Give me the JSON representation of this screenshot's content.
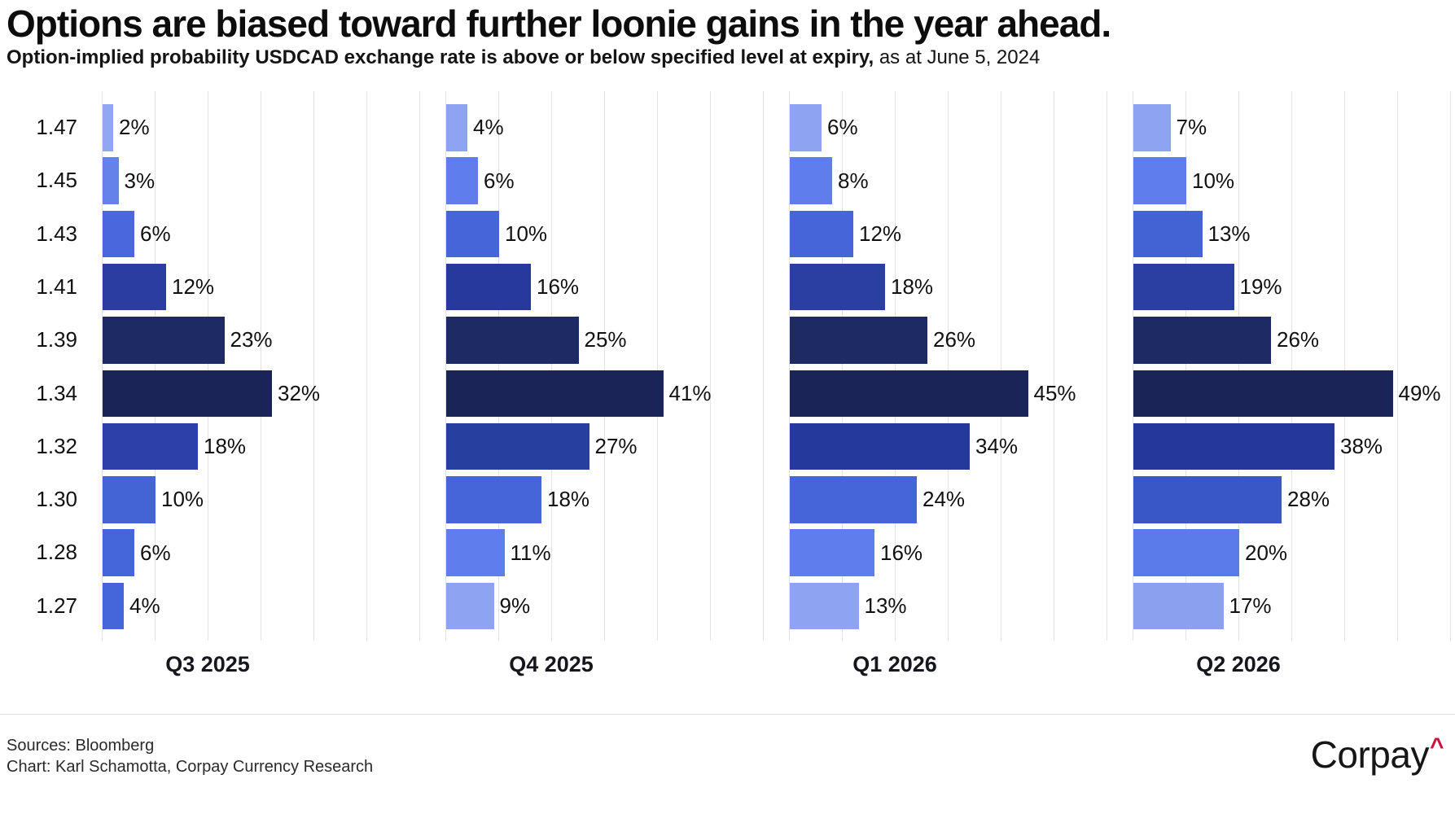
{
  "header": {
    "title": "Options are biased toward further loonie gains in the year ahead.",
    "subtitle_main": "Option-implied probability USDCAD exchange rate is above or below specified level at expiry,",
    "subtitle_suffix": " as at June 5, 2024"
  },
  "chart_data": {
    "type": "bar",
    "orientation": "horizontal",
    "grid": true,
    "gridline_interval_pct": 10,
    "xlim": [
      0,
      60
    ],
    "value_suffix": "%",
    "categories": [
      "1.47",
      "1.45",
      "1.43",
      "1.41",
      "1.39",
      "1.34",
      "1.32",
      "1.30",
      "1.28",
      "1.27"
    ],
    "panels": [
      {
        "label": "Q3 2025",
        "values": [
          2,
          3,
          6,
          12,
          23,
          32,
          18,
          10,
          6,
          4
        ],
        "colors": [
          "#93A6F1",
          "#6581EA",
          "#4A67DD",
          "#2B3DA0",
          "#1D2A63",
          "#1A2457",
          "#2D40AA",
          "#4464D6",
          "#4566DB",
          "#4566DB"
        ]
      },
      {
        "label": "Q4 2025",
        "values": [
          4,
          6,
          10,
          16,
          25,
          41,
          27,
          18,
          11,
          9
        ],
        "colors": [
          "#8EA3F1",
          "#5F7DEC",
          "#4565D8",
          "#28399D",
          "#1D2A63",
          "#1A2457",
          "#27409F",
          "#4565D8",
          "#5F7DEC",
          "#8EA3F1"
        ]
      },
      {
        "label": "Q1 2026",
        "values": [
          6,
          8,
          12,
          18,
          26,
          45,
          34,
          24,
          16,
          13
        ],
        "colors": [
          "#8EA3F1",
          "#5F7DEC",
          "#4565D8",
          "#2B3FA3",
          "#1D2A63",
          "#1A2457",
          "#24399B",
          "#4565D8",
          "#5F7DEC",
          "#8EA3F1"
        ]
      },
      {
        "label": "Q2 2026",
        "values": [
          7,
          10,
          13,
          19,
          26,
          49,
          38,
          28,
          20,
          17
        ],
        "colors": [
          "#8EA3F1",
          "#5F7DEC",
          "#4363D5",
          "#2B3FA3",
          "#1D2A63",
          "#1A2457",
          "#25379B",
          "#3A57C8",
          "#5C7BEB",
          "#8BA0EF"
        ]
      }
    ]
  },
  "footer": {
    "sources": "Sources: Bloomberg",
    "credit": "Chart: Karl Schamotta, Corpay Currency Research",
    "logo_text": "Corpay",
    "logo_caret": "^",
    "logo_caret_color": "#C8133E"
  }
}
